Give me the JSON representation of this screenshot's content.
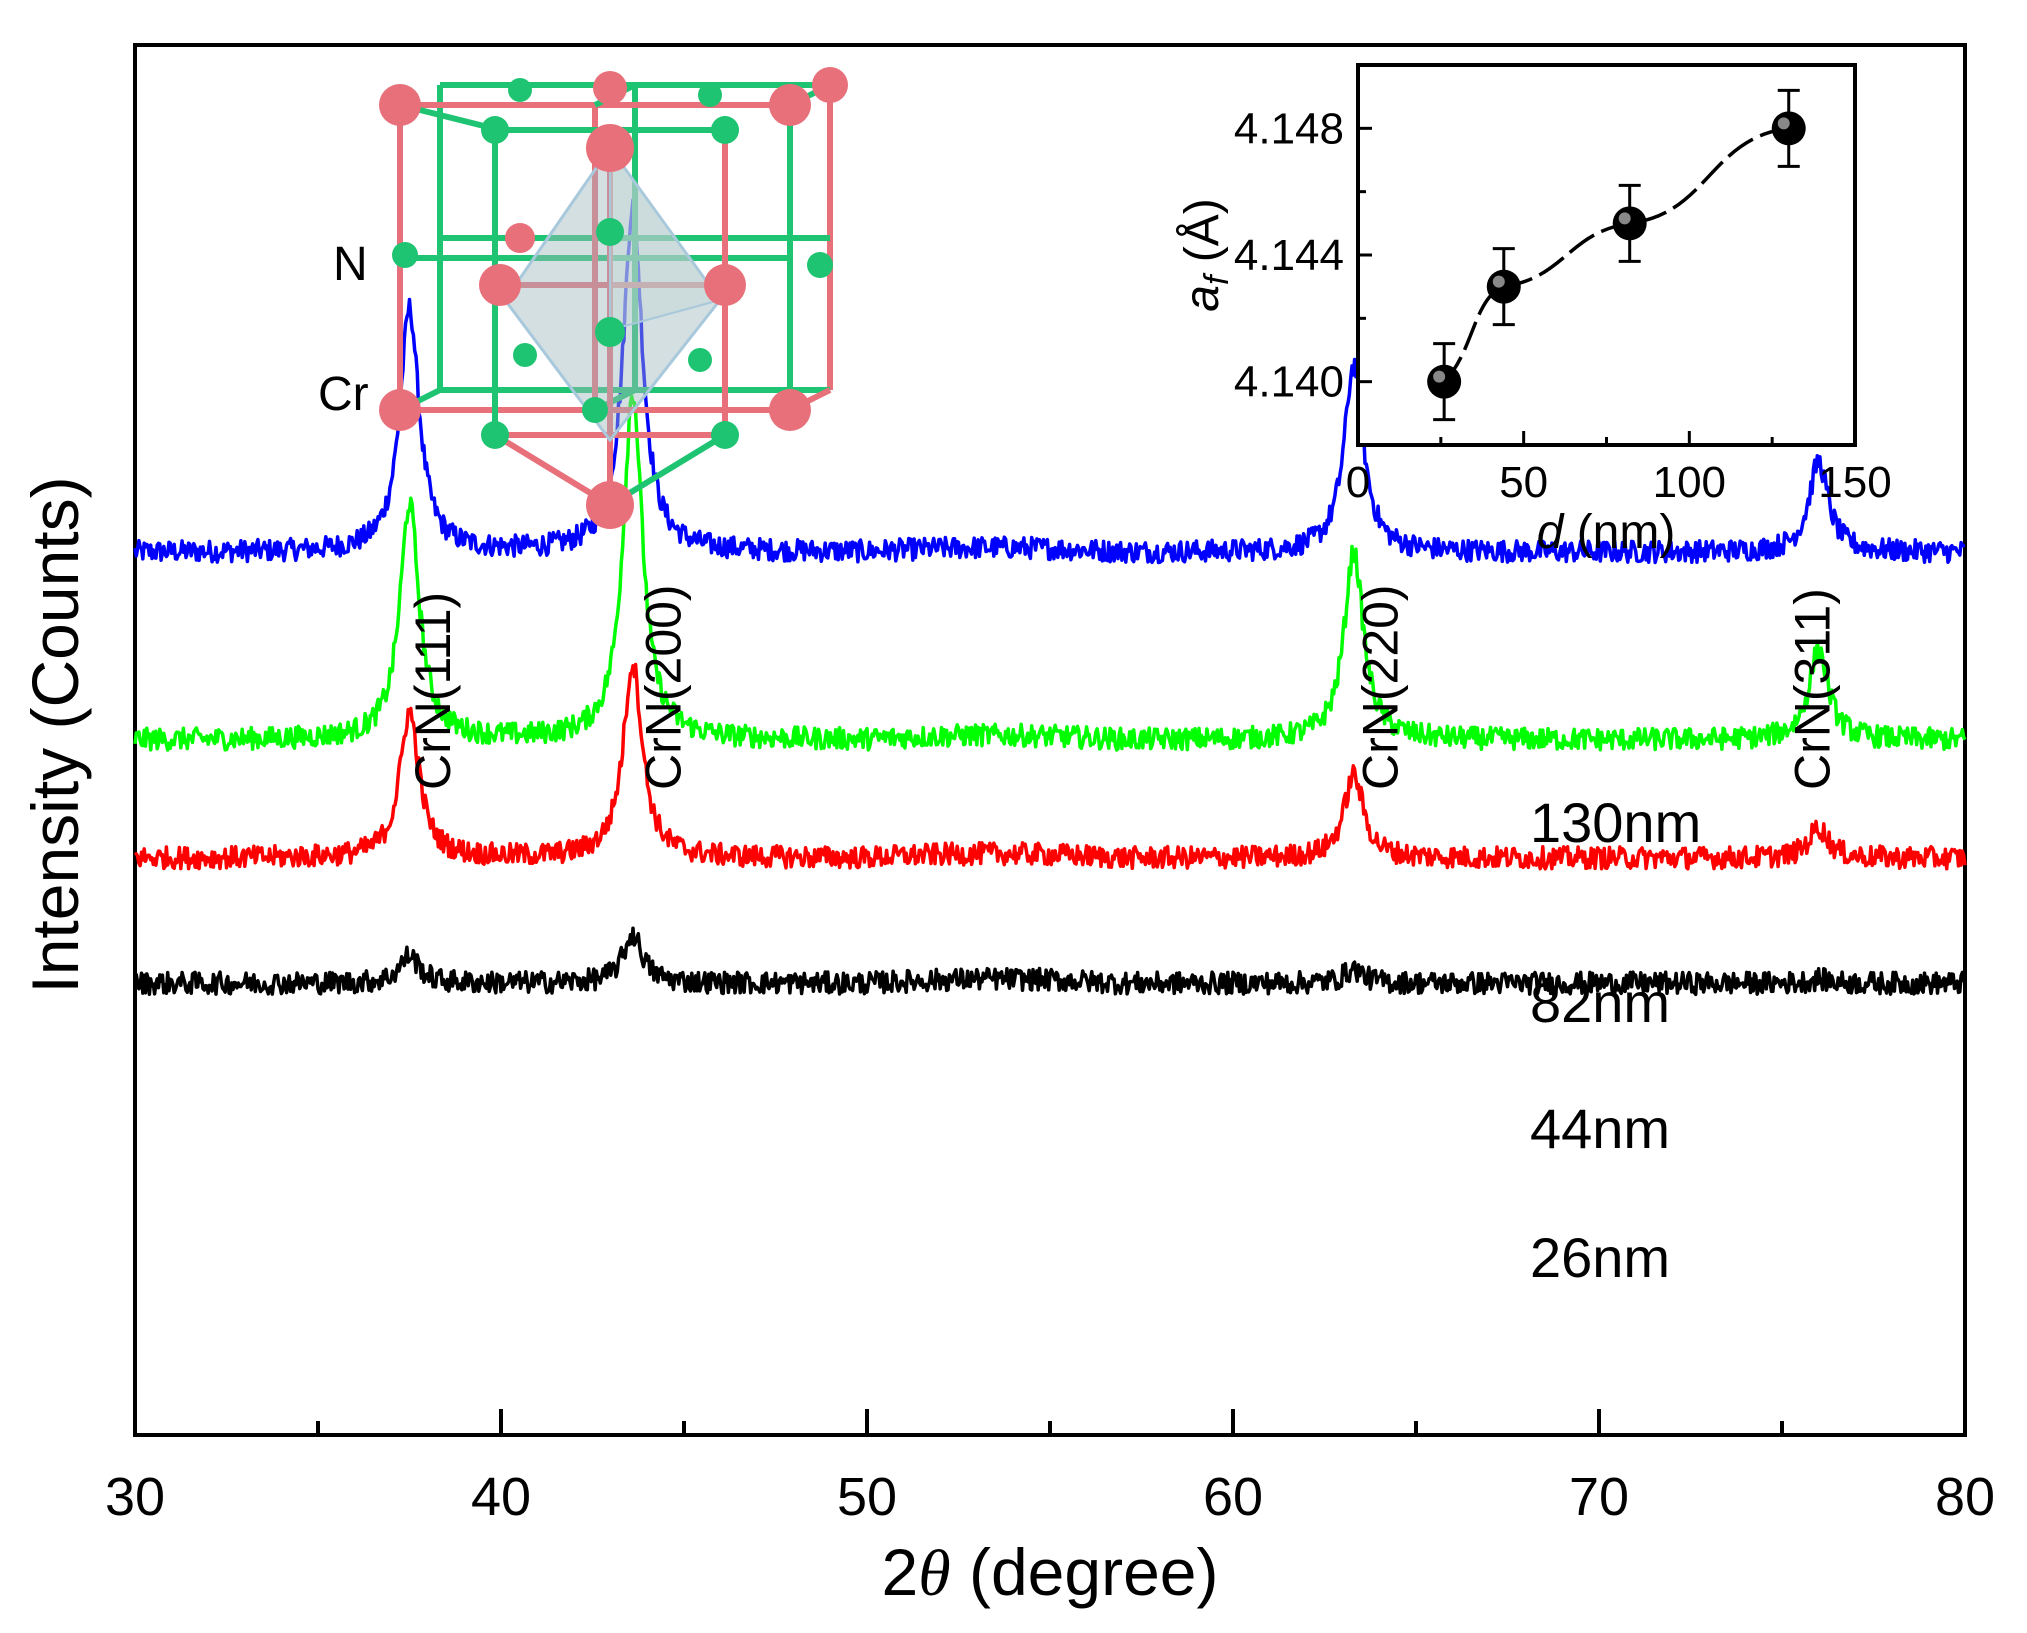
{
  "chart_data": [
    {
      "type": "line",
      "title": "",
      "xlabel_prefix": "2",
      "xlabel_theta": "θ",
      "xlabel_suffix": " (degree)",
      "ylabel": "Intensity (Counts)",
      "xlim": [
        30,
        80
      ],
      "xticks": [
        30,
        40,
        50,
        60,
        70,
        80
      ],
      "xtick_labels": [
        "30",
        "40",
        "50",
        "60",
        "70",
        "80"
      ],
      "minor_xticks": [
        35,
        45,
        55,
        65,
        75
      ],
      "y_units": "arbitrary, stacked offset",
      "ylim": [
        0,
        100
      ],
      "series": [
        {
          "name": "130nm",
          "color": "#0000ff",
          "baseline": 63.5,
          "peaks": [
            {
              "x": 37.5,
              "height": 17.5
            },
            {
              "x": 43.6,
              "height": 25.0
            },
            {
              "x": 63.3,
              "height": 13.5
            },
            {
              "x": 76.0,
              "height": 6.5
            }
          ]
        },
        {
          "name": "82nm",
          "color": "#00ff00",
          "baseline": 50.0,
          "peaks": [
            {
              "x": 37.5,
              "height": 17.0
            },
            {
              "x": 43.6,
              "height": 25.0
            },
            {
              "x": 63.3,
              "height": 13.5
            },
            {
              "x": 76.0,
              "height": 6.5
            }
          ]
        },
        {
          "name": "44nm",
          "color": "#ff0000",
          "baseline": 41.5,
          "peaks": [
            {
              "x": 37.5,
              "height": 10.5
            },
            {
              "x": 43.6,
              "height": 14.0
            },
            {
              "x": 63.3,
              "height": 6.0
            },
            {
              "x": 76.0,
              "height": 2.2
            }
          ]
        },
        {
          "name": "26nm",
          "color": "#000000",
          "baseline": 32.5,
          "peaks": [
            {
              "x": 37.5,
              "height": 2.0
            },
            {
              "x": 43.6,
              "height": 3.5
            },
            {
              "x": 63.3,
              "height": 1.0
            },
            {
              "x": 76.0,
              "height": 0.3
            }
          ]
        }
      ],
      "annotations": [
        {
          "text": "CrN(111)",
          "x": 38.6
        },
        {
          "text": "CrN(200)",
          "x": 44.9
        },
        {
          "text": "CrN(220)",
          "x": 64.5
        },
        {
          "text": "CrN(311)",
          "x": 76.3
        }
      ],
      "legend": "inline labels right of curves"
    },
    {
      "type": "scatter",
      "title": "",
      "xlabel_var": "d",
      "xlabel_unit": " (nm)",
      "ylabel_var": "a",
      "ylabel_sub": "f",
      "ylabel_unit": " (Å)",
      "xlim": [
        0,
        150
      ],
      "ylim": [
        4.138,
        4.15
      ],
      "xticks": [
        0,
        50,
        100,
        150
      ],
      "xtick_labels": [
        "0",
        "50",
        "100",
        "150"
      ],
      "yticks": [
        4.14,
        4.144,
        4.148
      ],
      "ytick_labels": [
        "4.140",
        "4.144",
        "4.148"
      ],
      "x": [
        26,
        44,
        82,
        130
      ],
      "y": [
        4.14,
        4.143,
        4.145,
        4.148
      ],
      "yerr": [
        0.0012,
        0.0012,
        0.0012,
        0.0012
      ],
      "fit": "dashed smooth curve"
    }
  ],
  "crystal": {
    "labels": {
      "nitrogen": "N",
      "chromium": "Cr"
    },
    "colors": {
      "chromium": "#e8707a",
      "nitrogen": "#1fc472",
      "octahedron": "#9fb9bd"
    }
  },
  "sample_labels": [
    "130nm",
    "82nm",
    "44nm",
    "26nm"
  ]
}
